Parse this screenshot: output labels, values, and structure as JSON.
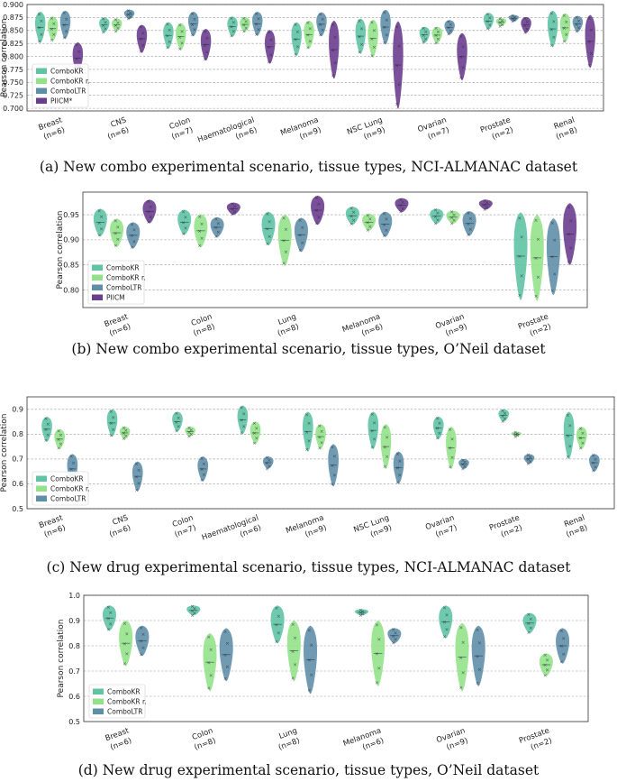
{
  "colors": {
    "ComboKR": "#5fc3a4",
    "ComboKR r.": "#93e28a",
    "ComboLTR": "#5f8fa8",
    "PIICM": "#6a3d8e"
  },
  "captions": [
    "(a) New combo experimental scenario, tissue types, NCI-ALMANAC dataset",
    "(b) New combo experimental scenario, tissue types, O’Neil dataset",
    "(c) New drug experimental scenario, tissue types, NCI-ALMANAC dataset",
    "(d) New drug experimental scenario, tissue types, O’Neil dataset"
  ],
  "chart_data": [
    {
      "type": "violin",
      "ylabel": "Pearson correlation",
      "ylim": [
        0.695,
        0.9
      ],
      "yticks": [
        0.7,
        0.725,
        0.75,
        0.775,
        0.8,
        0.825,
        0.85,
        0.875,
        0.9
      ],
      "ytick_labels": [
        "0.700",
        "0.725",
        "0.750",
        "0.775",
        "0.800",
        "0.825",
        "0.850",
        "0.875",
        "0.900"
      ],
      "legend": [
        "ComboKR",
        "ComboKR r.",
        "ComboLTR",
        "PIICM*"
      ],
      "categories": [
        "Breast",
        "CNS",
        "Colon",
        "Haematological",
        "Melanoma",
        "NSC Lung",
        "Ovarian",
        "Prostate",
        "Renal"
      ],
      "n_labels": [
        "(n=6)",
        "(n=6)",
        "(n=7)",
        "(n=6)",
        "(n=9)",
        "(n=9)",
        "(n=7)",
        "(n=2)",
        "(n=8)"
      ],
      "series": [
        {
          "name": "ComboKR",
          "ranges": [
            [
              0.826,
              0.886
            ],
            [
              0.846,
              0.875
            ],
            [
              0.815,
              0.866
            ],
            [
              0.838,
              0.877
            ],
            [
              0.801,
              0.866
            ],
            [
              0.805,
              0.873
            ],
            [
              0.826,
              0.857
            ],
            [
              0.852,
              0.884
            ],
            [
              0.818,
              0.888
            ]
          ]
        },
        {
          "name": "ComboKR r.",
          "ranges": [
            [
              0.83,
              0.877
            ],
            [
              0.848,
              0.873
            ],
            [
              0.812,
              0.864
            ],
            [
              0.847,
              0.876
            ],
            [
              0.815,
              0.869
            ],
            [
              0.798,
              0.871
            ],
            [
              0.825,
              0.857
            ],
            [
              0.858,
              0.874
            ],
            [
              0.827,
              0.883
            ]
          ]
        },
        {
          "name": "ComboLTR",
          "ranges": [
            [
              0.834,
              0.888
            ],
            [
              0.872,
              0.89
            ],
            [
              0.839,
              0.886
            ],
            [
              0.84,
              0.886
            ],
            [
              0.839,
              0.885
            ],
            [
              0.823,
              0.89
            ],
            [
              0.842,
              0.87
            ],
            [
              0.867,
              0.88
            ],
            [
              0.847,
              0.878
            ]
          ]
        },
        {
          "name": "PIICM",
          "ranges": [
            [
              0.766,
              0.827
            ],
            [
              0.807,
              0.861
            ],
            [
              0.792,
              0.853
            ],
            [
              0.786,
              0.851
            ],
            [
              0.757,
              0.869
            ],
            [
              0.699,
              0.868
            ],
            [
              0.754,
              0.845
            ],
            [
              0.845,
              0.876
            ],
            [
              0.778,
              0.88
            ]
          ]
        }
      ]
    },
    {
      "type": "violin",
      "ylabel": "Pearson correlation",
      "ylim": [
        0.765,
        0.995
      ],
      "yticks": [
        0.8,
        0.85,
        0.9,
        0.95
      ],
      "ytick_labels": [
        "0.80",
        "0.85",
        "0.90",
        "0.95"
      ],
      "legend": [
        "ComboKR",
        "ComboKR r.",
        "ComboLTR",
        "PIICM"
      ],
      "categories": [
        "Breast",
        "Colon",
        "Lung",
        "Melanoma",
        "Ovarian",
        "Prostate"
      ],
      "n_labels": [
        "(n=6)",
        "(n=8)",
        "(n=8)",
        "(n=6)",
        "(n=9)",
        "(n=2)"
      ],
      "series": [
        {
          "name": "ComboKR",
          "ranges": [
            [
              0.907,
              0.962
            ],
            [
              0.91,
              0.96
            ],
            [
              0.889,
              0.956
            ],
            [
              0.93,
              0.966
            ],
            [
              0.932,
              0.962
            ],
            [
              0.78,
              0.955
            ]
          ]
        },
        {
          "name": "ComboKR r.",
          "ranges": [
            [
              0.886,
              0.942
            ],
            [
              0.885,
              0.951
            ],
            [
              0.848,
              0.95
            ],
            [
              0.918,
              0.952
            ],
            [
              0.932,
              0.958
            ],
            [
              0.778,
              0.95
            ]
          ]
        },
        {
          "name": "ComboLTR",
          "ranges": [
            [
              0.883,
              0.935
            ],
            [
              0.905,
              0.945
            ],
            [
              0.876,
              0.944
            ],
            [
              0.906,
              0.956
            ],
            [
              0.908,
              0.957
            ],
            [
              0.79,
              0.943
            ]
          ]
        },
        {
          "name": "PIICM",
          "ranges": [
            [
              0.933,
              0.98
            ],
            [
              0.95,
              0.974
            ],
            [
              0.93,
              0.988
            ],
            [
              0.955,
              0.983
            ],
            [
              0.96,
              0.98
            ],
            [
              0.85,
              0.973
            ]
          ]
        }
      ]
    },
    {
      "type": "violin",
      "ylabel": "Pearson correlation",
      "ylim": [
        0.5,
        0.95
      ],
      "yticks": [
        0.5,
        0.6,
        0.7,
        0.8,
        0.9
      ],
      "ytick_labels": [
        "0.5",
        "0.6",
        "0.7",
        "0.8",
        "0.9"
      ],
      "legend": [
        "ComboKR",
        "ComboKR r.",
        "ComboLTR"
      ],
      "categories": [
        "Breast",
        "CNS",
        "Colon",
        "Haematological",
        "Melanoma",
        "NSC Lung",
        "Ovarian",
        "Prostate",
        "Renal"
      ],
      "n_labels": [
        "(n=6)",
        "(n=6)",
        "(n=7)",
        "(n=6)",
        "(n=9)",
        "(n=9)",
        "(n=7)",
        "(n=2)",
        "(n=8)"
      ],
      "series": [
        {
          "name": "ComboKR",
          "ranges": [
            [
              0.77,
              0.87
            ],
            [
              0.79,
              0.9
            ],
            [
              0.81,
              0.89
            ],
            [
              0.8,
              0.915
            ],
            [
              0.73,
              0.89
            ],
            [
              0.74,
              0.89
            ],
            [
              0.78,
              0.87
            ],
            [
              0.85,
              0.9
            ],
            [
              0.7,
              0.89
            ]
          ]
        },
        {
          "name": "ComboKR r.",
          "ranges": [
            [
              0.74,
              0.82
            ],
            [
              0.78,
              0.83
            ],
            [
              0.79,
              0.83
            ],
            [
              0.76,
              0.85
            ],
            [
              0.74,
              0.84
            ],
            [
              0.66,
              0.84
            ],
            [
              0.66,
              0.83
            ],
            [
              0.79,
              0.81
            ],
            [
              0.74,
              0.83
            ]
          ]
        },
        {
          "name": "ComboLTR",
          "ranges": [
            [
              0.6,
              0.72
            ],
            [
              0.57,
              0.69
            ],
            [
              0.61,
              0.71
            ],
            [
              0.66,
              0.71
            ],
            [
              0.59,
              0.76
            ],
            [
              0.6,
              0.73
            ],
            [
              0.66,
              0.7
            ],
            [
              0.68,
              0.72
            ],
            [
              0.65,
              0.72
            ]
          ]
        }
      ]
    },
    {
      "type": "violin",
      "ylabel": "Pearson correlation",
      "ylim": [
        0.5,
        1.0
      ],
      "yticks": [
        0.5,
        0.6,
        0.7,
        0.8,
        0.9,
        1.0
      ],
      "ytick_labels": [
        "0.5",
        "0.6",
        "0.7",
        "0.8",
        "0.9",
        "1.0"
      ],
      "legend": [
        "ComboKR",
        "ComboKR r.",
        "ComboLTR"
      ],
      "categories": [
        "Breast",
        "Colon",
        "Lung",
        "Melanoma",
        "Ovarian",
        "Prostate"
      ],
      "n_labels": [
        "(n=6)",
        "(n=8)",
        "(n=8)",
        "(n=6)",
        "(n=9)",
        "(n=2)"
      ],
      "series": [
        {
          "name": "ComboKR",
          "ranges": [
            [
              0.86,
              0.96
            ],
            [
              0.92,
              0.96
            ],
            [
              0.81,
              0.96
            ],
            [
              0.92,
              0.945
            ],
            [
              0.83,
              0.96
            ],
            [
              0.85,
              0.93
            ]
          ]
        },
        {
          "name": "ComboKR r.",
          "ranges": [
            [
              0.72,
              0.9
            ],
            [
              0.62,
              0.85
            ],
            [
              0.66,
              0.9
            ],
            [
              0.64,
              0.9
            ],
            [
              0.62,
              0.89
            ],
            [
              0.68,
              0.77
            ]
          ]
        },
        {
          "name": "ComboLTR",
          "ranges": [
            [
              0.76,
              0.88
            ],
            [
              0.66,
              0.87
            ],
            [
              0.61,
              0.88
            ],
            [
              0.81,
              0.87
            ],
            [
              0.64,
              0.88
            ],
            [
              0.73,
              0.87
            ]
          ]
        }
      ]
    }
  ]
}
